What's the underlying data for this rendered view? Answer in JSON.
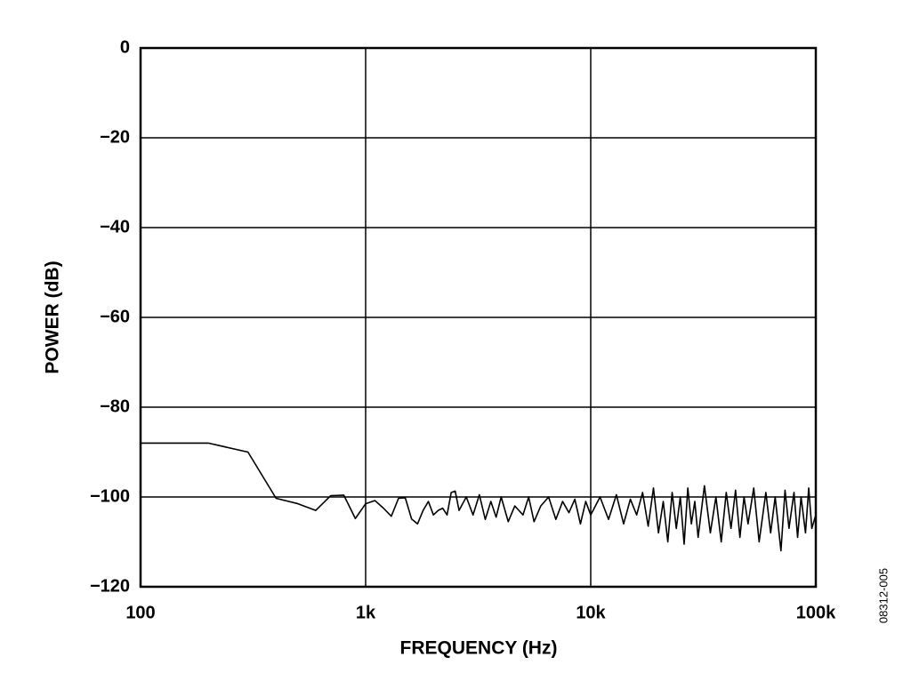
{
  "chart_data": {
    "type": "line",
    "xlabel": "FREQUENCY (Hz)",
    "ylabel": "POWER (dB)",
    "figure_id": "08312-005",
    "xscale": "log",
    "grid": true,
    "xlim": [
      100,
      100000
    ],
    "ylim": [
      -120,
      0
    ],
    "xticks": [
      100,
      {
        "value": 1000,
        "label": "1k"
      },
      {
        "value": 10000,
        "label": "10k"
      },
      {
        "value": 100000,
        "label": "100k"
      }
    ],
    "yticks": [
      0,
      {
        "value": -20,
        "label": "−20"
      },
      {
        "value": -40,
        "label": "−40"
      },
      {
        "value": -60,
        "label": "−60"
      },
      {
        "value": -80,
        "label": "−80"
      },
      {
        "value": -100,
        "label": "−100"
      },
      {
        "value": -120,
        "label": "−120"
      }
    ],
    "series": [
      {
        "color": "#000000",
        "x": [
          100,
          200,
          300,
          400,
          500,
          600,
          700,
          800,
          900,
          1000,
          1100,
          1200,
          1300,
          1400,
          1500,
          1600,
          1700,
          1800,
          1900,
          2000,
          2100,
          2200,
          2300,
          2400,
          2500,
          2600,
          2800,
          3000,
          3200,
          3400,
          3600,
          3800,
          4000,
          4300,
          4600,
          5000,
          5300,
          5600,
          6000,
          6500,
          7000,
          7500,
          8000,
          8500,
          9000,
          9500,
          10000,
          11000,
          12000,
          13000,
          14000,
          15000,
          16000,
          17000,
          18000,
          19000,
          20000,
          21000,
          22000,
          23000,
          24000,
          25000,
          26000,
          27000,
          28000,
          29000,
          30000,
          32000,
          34000,
          36000,
          38000,
          40000,
          42000,
          44000,
          46000,
          48000,
          50000,
          53000,
          56000,
          60000,
          63000,
          66000,
          70000,
          73000,
          76000,
          80000,
          83000,
          86000,
          90000,
          93000,
          96000,
          100000
        ],
        "values": [
          -88,
          -88,
          -90,
          -100.3,
          -101.5,
          -103,
          -99.7,
          -99.6,
          -104.8,
          -101.5,
          -100.8,
          -102.5,
          -104.3,
          -100.3,
          -100.2,
          -104.9,
          -106,
          -103,
          -101,
          -104,
          -103,
          -102.5,
          -104,
          -99,
          -98.7,
          -103,
          -100,
          -104,
          -99.5,
          -105,
          -101,
          -104.5,
          -100,
          -105.5,
          -102,
          -104,
          -100,
          -105.5,
          -102,
          -100,
          -105,
          -101,
          -103.5,
          -100.5,
          -106,
          -101,
          -104,
          -100,
          -105,
          -99.5,
          -106,
          -100.5,
          -104,
          -99,
          -106.5,
          -98,
          -108,
          -101,
          -110,
          -99,
          -107,
          -100,
          -110.5,
          -98,
          -106,
          -101,
          -109,
          -97.5,
          -108,
          -100,
          -110,
          -99,
          -107,
          -98.5,
          -109,
          -100,
          -106,
          -98,
          -110,
          -99,
          -108,
          -100,
          -112,
          -98.5,
          -107,
          -99,
          -109,
          -100,
          -108,
          -98,
          -107,
          -104
        ]
      }
    ]
  }
}
